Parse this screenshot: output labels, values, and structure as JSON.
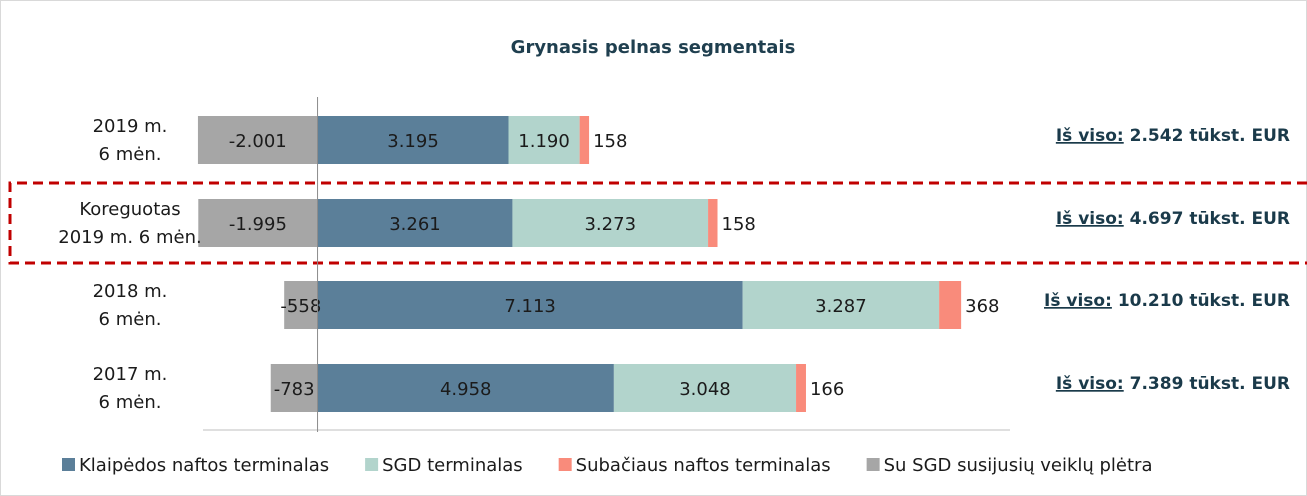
{
  "chart_data": {
    "type": "stacked-bar-horizontal",
    "title": "Grynasis pelnas segmentais",
    "categories": [
      [
        "2019 m.",
        "6 mėn."
      ],
      [
        "Koreguotas",
        "2019 m. 6 mėn."
      ],
      [
        "2018 m.",
        "6 mėn."
      ],
      [
        "2017 m.",
        "6 mėn."
      ]
    ],
    "series": [
      {
        "name": "Klaipėdos naftos terminalas",
        "color": "#5b7f99",
        "values": [
          3195,
          3261,
          7113,
          4958
        ],
        "value_labels": [
          "3.195",
          "3.261",
          "7.113",
          "4.958"
        ]
      },
      {
        "name": "SGD terminalas",
        "color": "#b2d4cc",
        "values": [
          1190,
          3273,
          3287,
          3048
        ],
        "value_labels": [
          "1.190",
          "3.273",
          "3.287",
          "3.048"
        ]
      },
      {
        "name": "Subačiaus naftos terminalas",
        "color": "#f98b7b",
        "values": [
          158,
          158,
          368,
          166
        ],
        "value_labels": [
          "158",
          "158",
          "368",
          "166"
        ]
      },
      {
        "name": "Su SGD susijusių veiklų plėtra",
        "color": "#a6a6a6",
        "values": [
          -2001,
          -1995,
          -558,
          -783
        ],
        "value_labels": [
          "-2.001",
          "-1.995",
          "-558",
          "-783"
        ]
      }
    ],
    "total_prefix": "Iš viso:",
    "totals": [
      "2.542 tūkst. EUR",
      "4.697 tūkst. EUR",
      "10.210 tūkst. EUR",
      "7.389 tūkst. EUR"
    ],
    "xlim": [
      -2000,
      11000
    ],
    "legend": "bottom"
  }
}
